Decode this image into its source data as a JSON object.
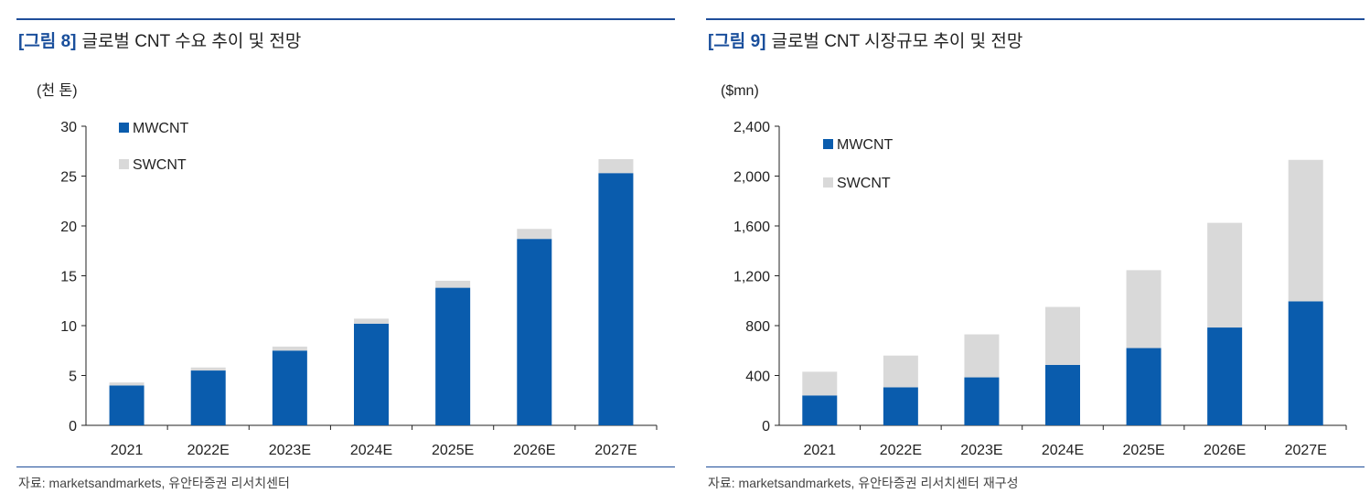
{
  "figures": [
    {
      "fig_label": "[그림 8]",
      "title": "글로벌 CNT 수요 추이 및 전망",
      "source": "자료: marketsandmarkets, 유안타증권 리서치센터"
    },
    {
      "fig_label": "[그림 9]",
      "title": "글로벌 CNT 시장규모 추이 및 전망",
      "source": "자료: marketsandmarkets, 유안타증권 리서치센터 재구성"
    }
  ],
  "colors": {
    "mwcnt": "#0a5cad",
    "swcnt": "#d9d9d9",
    "axis": "#222222",
    "accent": "#1a4f9c"
  },
  "chart_data": [
    {
      "type": "bar",
      "stacked": true,
      "title": "글로벌 CNT 수요 추이 및 전망",
      "unit_label": "(천 톤)",
      "xlabel": "",
      "ylabel": "(천 톤)",
      "categories": [
        "2021",
        "2022E",
        "2023E",
        "2024E",
        "2025E",
        "2026E",
        "2027E"
      ],
      "series": [
        {
          "name": "MWCNT",
          "values": [
            4.0,
            5.5,
            7.5,
            10.2,
            13.8,
            18.7,
            25.3
          ]
        },
        {
          "name": "SWCNT",
          "values": [
            0.3,
            0.3,
            0.4,
            0.5,
            0.7,
            1.0,
            1.4
          ]
        }
      ],
      "ylim": [
        0,
        30
      ],
      "yticks": [
        0,
        5,
        10,
        15,
        20,
        25,
        30
      ],
      "ytick_labels": [
        "0",
        "5",
        "10",
        "15",
        "20",
        "25",
        "30"
      ],
      "legend_position": "top-left",
      "grid": false
    },
    {
      "type": "bar",
      "stacked": true,
      "title": "글로벌 CNT 시장규모 추이 및 전망",
      "unit_label": "($mn)",
      "xlabel": "",
      "ylabel": "($mn)",
      "categories": [
        "2021",
        "2022E",
        "2023E",
        "2024E",
        "2025E",
        "2026E",
        "2027E"
      ],
      "series": [
        {
          "name": "MWCNT",
          "values": [
            240,
            305,
            385,
            485,
            620,
            785,
            995
          ]
        },
        {
          "name": "SWCNT",
          "values": [
            190,
            255,
            345,
            465,
            625,
            840,
            1135
          ]
        }
      ],
      "ylim": [
        0,
        2400
      ],
      "yticks": [
        0,
        400,
        800,
        1200,
        1600,
        2000,
        2400
      ],
      "ytick_labels": [
        "0",
        "400",
        "800",
        "1,200",
        "1,600",
        "2,000",
        "2,400"
      ],
      "legend_position": "top-left",
      "grid": false
    }
  ]
}
